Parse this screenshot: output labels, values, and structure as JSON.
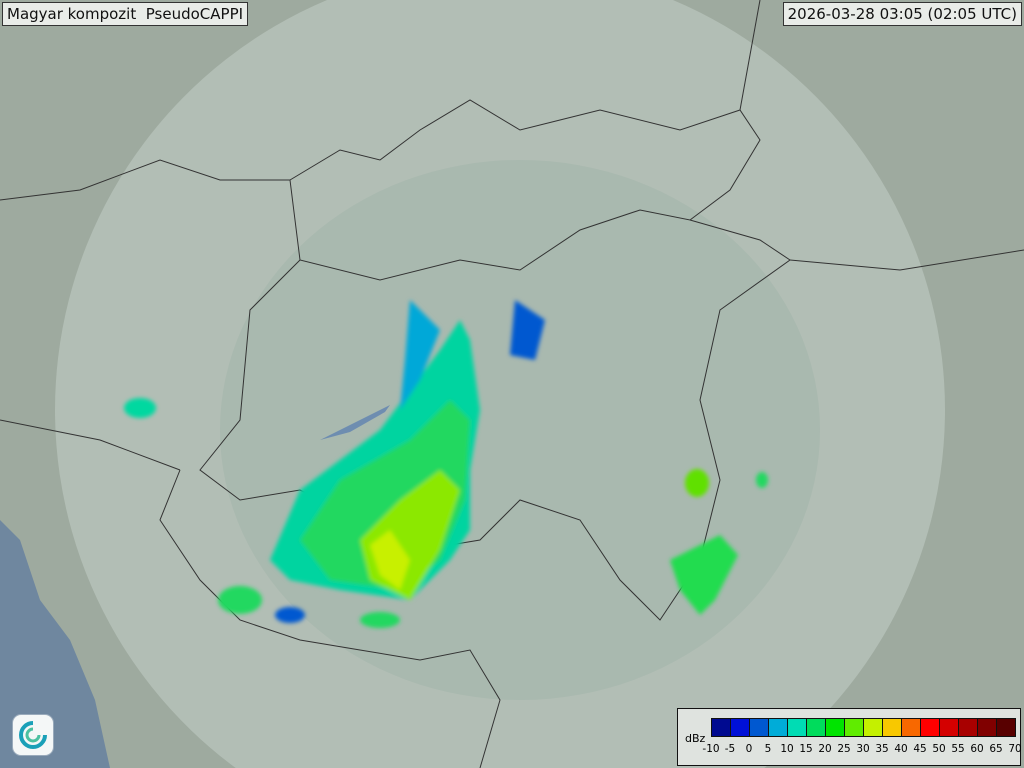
{
  "header": {
    "title": "Magyar kompozit  PseudoCAPPI",
    "timestamp": "2026-03-28 03:05 (02:05 UTC)"
  },
  "legend": {
    "unit": "dBz",
    "ticks": [
      "-10",
      "-5",
      "0",
      "5",
      "10",
      "15",
      "20",
      "25",
      "30",
      "35",
      "40",
      "45",
      "50",
      "55",
      "60",
      "65",
      "70"
    ],
    "colors": [
      "#000a90",
      "#0010d8",
      "#0058d0",
      "#00acd8",
      "#00dcb4",
      "#00dc5c",
      "#00e400",
      "#60ec00",
      "#c4f000",
      "#f8c800",
      "#f86800",
      "#ff0000",
      "#d40000",
      "#a80000",
      "#800000",
      "#580000"
    ]
  },
  "logo": {
    "icon": "met-service-swirl-logo"
  }
}
